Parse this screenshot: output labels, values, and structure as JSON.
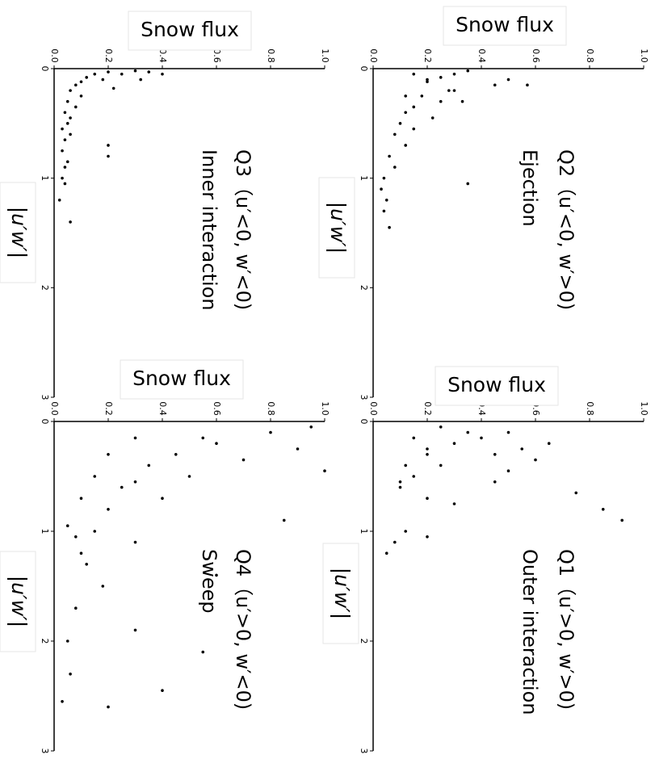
{
  "chart_data": [
    {
      "type": "scatter",
      "xlabel": "|u′w′|",
      "ylabel": "Snow flux",
      "annotation": [
        "Q3（u′<0, w′<0)",
        "Inner interaction"
      ],
      "color": "#000000",
      "xlim": [
        0,
        3
      ],
      "ylim": [
        0,
        1
      ],
      "xticks": [
        0,
        1,
        2,
        3
      ],
      "yticks": [
        {
          "value": 0,
          "label": "0.0"
        },
        0.2,
        0.4,
        0.6,
        0.8,
        {
          "value": 1,
          "label": "1.0"
        }
      ],
      "x": [
        0.02,
        0.03,
        0.05,
        0.05,
        0.08,
        0.1,
        0.12,
        0.15,
        0.18,
        0.2,
        0.25,
        0.3,
        0.35,
        0.4,
        0.45,
        0.5,
        0.55,
        0.6,
        0.65,
        0.7,
        0.75,
        0.8,
        0.85,
        0.9,
        1.0,
        1.05,
        1.2,
        1.4,
        0.1,
        0.05,
        0.03
      ],
      "values": [
        0.3,
        0.2,
        0.25,
        0.15,
        0.12,
        0.18,
        0.1,
        0.08,
        0.22,
        0.06,
        0.1,
        0.05,
        0.08,
        0.04,
        0.06,
        0.05,
        0.03,
        0.06,
        0.04,
        0.2,
        0.03,
        0.2,
        0.05,
        0.04,
        0.03,
        0.04,
        0.02,
        0.06,
        0.32,
        0.4,
        0.35
      ]
    },
    {
      "type": "scatter",
      "xlabel": "|u′w′|",
      "ylabel": "Snow flux",
      "annotation": [
        "Q2（u′<0, w′>0)",
        "Ejection"
      ],
      "color": "#000000",
      "xlim": [
        0,
        3
      ],
      "ylim": [
        0,
        1
      ],
      "xticks": [
        0,
        1,
        2,
        3
      ],
      "yticks": [
        {
          "value": 0,
          "label": "0.0"
        },
        0.2,
        0.4,
        0.6,
        0.8,
        {
          "value": 1,
          "label": "1.0"
        }
      ],
      "x": [
        0.02,
        0.05,
        0.08,
        0.1,
        0.12,
        0.15,
        0.2,
        0.25,
        0.3,
        0.35,
        0.4,
        0.45,
        0.5,
        0.55,
        0.6,
        0.7,
        0.8,
        0.9,
        1.0,
        1.05,
        1.1,
        1.2,
        1.3,
        1.45,
        0.15,
        0.2,
        0.1,
        0.3,
        0.05,
        0.25
      ],
      "values": [
        0.35,
        0.3,
        0.25,
        0.5,
        0.2,
        0.57,
        0.3,
        0.18,
        0.33,
        0.15,
        0.12,
        0.22,
        0.1,
        0.15,
        0.08,
        0.12,
        0.06,
        0.08,
        0.04,
        0.35,
        0.03,
        0.05,
        0.04,
        0.06,
        0.45,
        0.28,
        0.2,
        0.25,
        0.15,
        0.12
      ]
    },
    {
      "type": "scatter",
      "xlabel": "|u′w′|",
      "ylabel": "Snow flux",
      "annotation": [
        "Q4（u′>0, w′<0)",
        "Sweep"
      ],
      "color": "#000000",
      "xlim": [
        0,
        3
      ],
      "ylim": [
        0,
        1
      ],
      "xticks": [
        0,
        1,
        2,
        3
      ],
      "yticks": [
        {
          "value": 0,
          "label": "0.0"
        },
        0.2,
        0.4,
        0.6,
        0.8,
        {
          "value": 1,
          "label": "1.0"
        }
      ],
      "x": [
        0.05,
        0.1,
        0.15,
        0.2,
        0.25,
        0.3,
        0.35,
        0.4,
        0.45,
        0.5,
        0.55,
        0.6,
        0.7,
        0.8,
        0.9,
        1.0,
        1.1,
        1.2,
        1.3,
        1.4,
        1.5,
        1.7,
        1.9,
        2.0,
        2.1,
        2.3,
        2.45,
        2.55,
        2.6,
        0.15,
        0.3,
        0.5,
        0.7,
        0.95,
        1.05
      ],
      "values": [
        0.95,
        0.8,
        0.55,
        0.6,
        0.9,
        0.45,
        0.7,
        0.35,
        1.0,
        0.5,
        0.3,
        0.25,
        0.4,
        0.2,
        0.85,
        0.15,
        0.3,
        0.1,
        0.12,
        0.6,
        0.18,
        0.08,
        0.3,
        0.05,
        0.55,
        0.06,
        0.4,
        0.03,
        0.2,
        0.3,
        0.2,
        0.15,
        0.1,
        0.05,
        0.08
      ]
    },
    {
      "type": "scatter",
      "xlabel": "|u′w′|",
      "ylabel": "Snow flux",
      "annotation": [
        "Q1（u′>0, w′>0)",
        "Outer interaction"
      ],
      "color": "#000000",
      "xlim": [
        0,
        3
      ],
      "ylim": [
        0,
        1
      ],
      "xticks": [
        0,
        1,
        2,
        3
      ],
      "yticks": [
        {
          "value": 0,
          "label": "0.0"
        },
        0.2,
        0.4,
        0.6,
        0.8,
        {
          "value": 1,
          "label": "1.0"
        }
      ],
      "x": [
        0.05,
        0.1,
        0.15,
        0.2,
        0.25,
        0.3,
        0.35,
        0.4,
        0.45,
        0.5,
        0.55,
        0.6,
        0.65,
        0.7,
        0.8,
        0.9,
        1.0,
        1.1,
        1.2,
        0.15,
        0.25,
        0.4,
        0.55,
        0.75,
        1.05,
        0.1,
        0.2,
        0.3
      ],
      "values": [
        0.25,
        0.35,
        0.4,
        0.3,
        0.55,
        0.2,
        0.6,
        0.25,
        0.5,
        0.15,
        0.45,
        0.1,
        0.75,
        0.2,
        0.85,
        0.92,
        0.12,
        0.08,
        0.05,
        0.15,
        0.2,
        0.12,
        0.1,
        0.3,
        0.2,
        0.5,
        0.65,
        0.45
      ]
    }
  ]
}
